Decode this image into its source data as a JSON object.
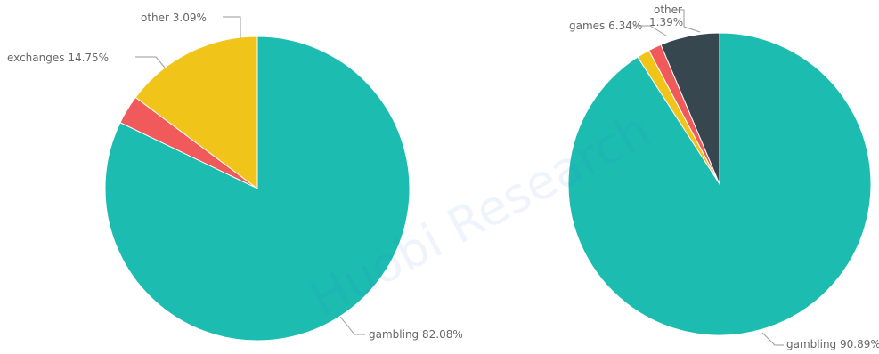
{
  "watermark": "Huobi Research",
  "chart_data": [
    {
      "type": "pie",
      "slices": [
        {
          "label": "gambling",
          "percent_text": "82.08%",
          "value": 82.08,
          "color": "#1cbcb0"
        },
        {
          "label": "exchanges",
          "percent_text": "14.75%",
          "value": 14.75,
          "color": "#f0c419"
        },
        {
          "label": "other",
          "percent_text": "3.09%",
          "value": 3.09,
          "color": "#f05a5a"
        }
      ]
    },
    {
      "type": "pie",
      "slices": [
        {
          "label": "gambling",
          "percent_text": "90.89%",
          "value": 90.89,
          "color": "#1cbcb0"
        },
        {
          "label": "games",
          "percent_text": "6.34%",
          "value": 6.34,
          "color": "#37474f"
        },
        {
          "label": "other",
          "percent_text": "1.39%",
          "value": 1.39,
          "color": "#f05a5a"
        },
        {
          "label": "",
          "percent_text": "",
          "value": 1.38,
          "color": "#f0c419"
        }
      ]
    }
  ]
}
